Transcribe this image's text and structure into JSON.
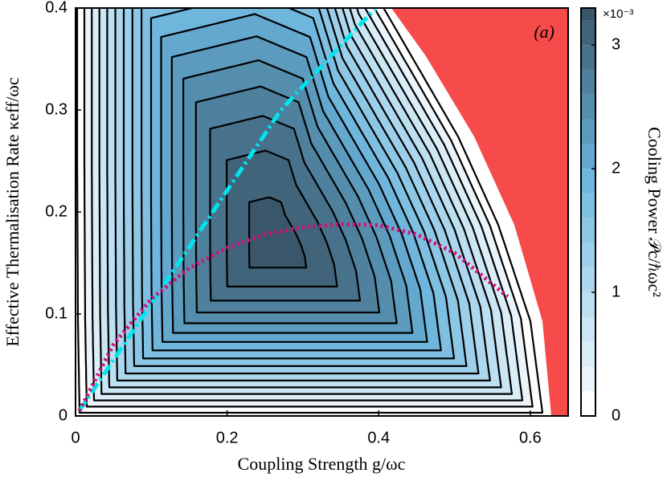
{
  "chart_data": {
    "type": "contour",
    "x_label": "Coupling Strength g/ωc",
    "y_label": "Effective Thermalisation Rate κeff/ωc",
    "colorbar_label": "Cooling Power 𝒫c/ℏωc²",
    "colorbar_multiplier": "×10⁻³",
    "annotation": "(a)",
    "xlim": [
      0,
      0.65
    ],
    "xticks": [
      0,
      0.2,
      0.4,
      0.6
    ],
    "ylim": [
      0,
      0.4
    ],
    "yticks": [
      0,
      0.1,
      0.2,
      0.3,
      0.4
    ],
    "clim": [
      0,
      3.3
    ],
    "cticks": [
      0,
      1,
      2,
      3
    ],
    "levels": [
      0,
      0.2,
      0.4,
      0.6,
      0.8,
      1.0,
      1.2,
      1.4,
      1.6,
      1.8,
      2.0,
      2.2,
      2.4,
      2.6,
      2.8,
      3.0,
      3.2
    ],
    "colors": [
      "#ffffff",
      "#eaf4fa",
      "#dbeef8",
      "#cce6f4",
      "#bcdff1",
      "#acd7ee",
      "#9dcfea",
      "#8dc7e6",
      "#7ebfe2",
      "#6fb6dd",
      "#64a8cf",
      "#5c9bbe",
      "#558dad",
      "#4f809d",
      "#48728c",
      "#41647b",
      "#3a566a"
    ],
    "lines": [
      {
        "color": "#00e5ee",
        "style": "dashdot",
        "x": [
          0.005,
          0.091,
          0.181,
          0.271,
          0.396
        ],
        "y": [
          0.005,
          0.1,
          0.2,
          0.3,
          0.4
        ]
      },
      {
        "color": "#d0127a",
        "style": "dotted",
        "x": [
          0.005,
          0.05,
          0.1,
          0.15,
          0.2,
          0.25,
          0.3,
          0.35,
          0.4,
          0.45,
          0.5,
          0.57
        ],
        "y": [
          0.005,
          0.07,
          0.115,
          0.145,
          0.165,
          0.178,
          0.185,
          0.188,
          0.187,
          0.178,
          0.16,
          0.117
        ]
      }
    ]
  }
}
